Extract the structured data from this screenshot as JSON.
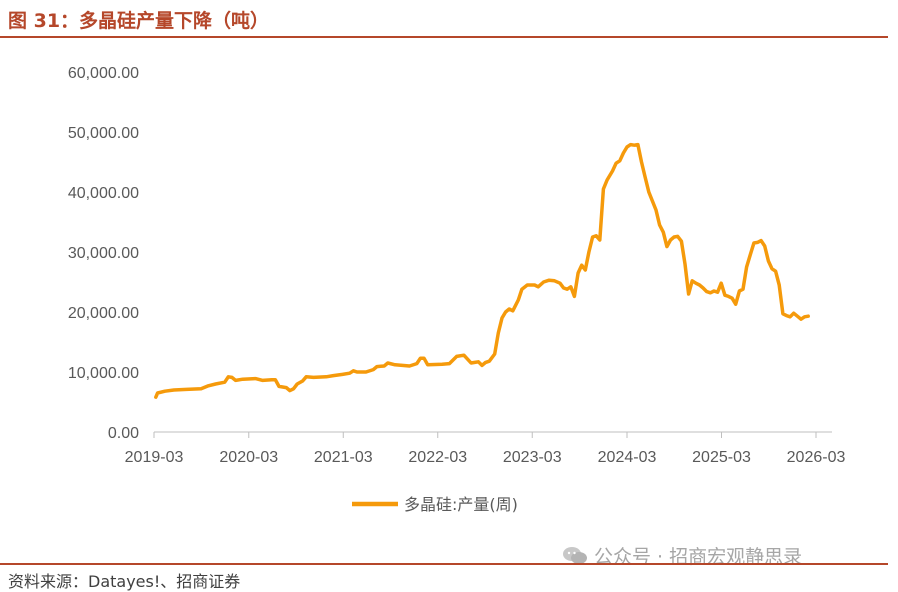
{
  "figure": {
    "title": "图 31：多晶硅产量下降（吨）",
    "source": "资料来源：Datayes!、招商证券",
    "watermark": "公众号 · 招商宏观静思录",
    "watermark_icon": "wechat-icon"
  },
  "colors": {
    "line": "#f59a0b",
    "accent": "#b5472a",
    "axis": "#bfbfbf",
    "text": "#595959"
  },
  "chart_data": {
    "type": "line",
    "title": "",
    "xlabel": "",
    "ylabel": "",
    "ylim": [
      0,
      60000
    ],
    "yticks": [
      "0.00",
      "10,000.00",
      "20,000.00",
      "30,000.00",
      "40,000.00",
      "50,000.00",
      "60,000.00"
    ],
    "xticks": [
      "2019-03",
      "2020-03",
      "2021-03",
      "2022-03",
      "2023-03",
      "2024-03",
      "2025-03",
      "2026-03"
    ],
    "grid": false,
    "legend_position": "bottom",
    "series": [
      {
        "name": "多晶硅:产量(周)",
        "points": [
          [
            "2019-03-08",
            5800
          ],
          [
            "2019-03-15",
            6500
          ],
          [
            "2019-04-12",
            6800
          ],
          [
            "2019-05-17",
            7000
          ],
          [
            "2019-07-05",
            7100
          ],
          [
            "2019-08-30",
            7200
          ],
          [
            "2019-09-27",
            7700
          ],
          [
            "2019-10-25",
            8000
          ],
          [
            "2019-11-29",
            8300
          ],
          [
            "2019-12-13",
            9200
          ],
          [
            "2019-12-27",
            9100
          ],
          [
            "2020-01-10",
            8600
          ],
          [
            "2020-02-07",
            8800
          ],
          [
            "2020-03-27",
            8900
          ],
          [
            "2020-04-24",
            8600
          ],
          [
            "2020-05-29",
            8700
          ],
          [
            "2020-06-12",
            8700
          ],
          [
            "2020-06-26",
            7600
          ],
          [
            "2020-07-24",
            7400
          ],
          [
            "2020-08-07",
            6900
          ],
          [
            "2020-08-21",
            7200
          ],
          [
            "2020-09-04",
            8000
          ],
          [
            "2020-09-25",
            8500
          ],
          [
            "2020-10-09",
            9200
          ],
          [
            "2020-11-06",
            9100
          ],
          [
            "2020-12-25",
            9200
          ],
          [
            "2021-01-22",
            9400
          ],
          [
            "2021-02-26",
            9600
          ],
          [
            "2021-03-26",
            9800
          ],
          [
            "2021-04-09",
            10200
          ],
          [
            "2021-04-23",
            10000
          ],
          [
            "2021-05-28",
            10000
          ],
          [
            "2021-06-25",
            10400
          ],
          [
            "2021-07-09",
            10900
          ],
          [
            "2021-08-06",
            11000
          ],
          [
            "2021-08-20",
            11500
          ],
          [
            "2021-09-17",
            11200
          ],
          [
            "2021-10-15",
            11100
          ],
          [
            "2021-11-12",
            11000
          ],
          [
            "2021-12-10",
            11400
          ],
          [
            "2021-12-24",
            12300
          ],
          [
            "2022-01-07",
            12300
          ],
          [
            "2022-01-21",
            11200
          ],
          [
            "2022-03-18",
            11300
          ],
          [
            "2022-04-15",
            11400
          ],
          [
            "2022-05-13",
            12600
          ],
          [
            "2022-06-10",
            12800
          ],
          [
            "2022-07-08",
            11500
          ],
          [
            "2022-07-22",
            11600
          ],
          [
            "2022-08-05",
            11700
          ],
          [
            "2022-08-19",
            11100
          ],
          [
            "2022-09-02",
            11600
          ],
          [
            "2022-09-16",
            11800
          ],
          [
            "2022-10-07",
            13000
          ],
          [
            "2022-10-21",
            16500
          ],
          [
            "2022-11-04",
            19000
          ],
          [
            "2022-11-18",
            20000
          ],
          [
            "2022-12-02",
            20500
          ],
          [
            "2022-12-16",
            20200
          ],
          [
            "2023-01-06",
            22000
          ],
          [
            "2023-01-20",
            23800
          ],
          [
            "2023-02-10",
            24500
          ],
          [
            "2023-03-10",
            24500
          ],
          [
            "2023-03-24",
            24200
          ],
          [
            "2023-04-14",
            25000
          ],
          [
            "2023-05-05",
            25300
          ],
          [
            "2023-05-26",
            25200
          ],
          [
            "2023-06-16",
            24800
          ],
          [
            "2023-06-30",
            24000
          ],
          [
            "2023-07-14",
            23800
          ],
          [
            "2023-07-28",
            24200
          ],
          [
            "2023-08-11",
            22600
          ],
          [
            "2023-08-25",
            26500
          ],
          [
            "2023-09-08",
            27800
          ],
          [
            "2023-09-22",
            27000
          ],
          [
            "2023-10-06",
            30000
          ],
          [
            "2023-10-20",
            32500
          ],
          [
            "2023-11-03",
            32700
          ],
          [
            "2023-11-17",
            32000
          ],
          [
            "2023-12-01",
            40500
          ],
          [
            "2023-12-15",
            42000
          ],
          [
            "2024-01-05",
            43500
          ],
          [
            "2024-01-19",
            44800
          ],
          [
            "2024-02-02",
            45200
          ],
          [
            "2024-02-16",
            46500
          ],
          [
            "2024-03-01",
            47500
          ],
          [
            "2024-03-15",
            47900
          ],
          [
            "2024-03-29",
            47800
          ],
          [
            "2024-04-12",
            47900
          ],
          [
            "2024-04-26",
            45000
          ],
          [
            "2024-05-10",
            42500
          ],
          [
            "2024-05-24",
            40000
          ],
          [
            "2024-06-07",
            38500
          ],
          [
            "2024-06-21",
            37000
          ],
          [
            "2024-07-05",
            34500
          ],
          [
            "2024-07-19",
            33300
          ],
          [
            "2024-08-02",
            30900
          ],
          [
            "2024-08-16",
            32000
          ],
          [
            "2024-08-30",
            32500
          ],
          [
            "2024-09-13",
            32600
          ],
          [
            "2024-09-27",
            31800
          ],
          [
            "2024-10-11",
            28000
          ],
          [
            "2024-10-25",
            23000
          ],
          [
            "2024-11-08",
            25200
          ],
          [
            "2024-11-22",
            24800
          ],
          [
            "2024-12-06",
            24500
          ],
          [
            "2024-12-20",
            24000
          ],
          [
            "2025-01-03",
            23400
          ],
          [
            "2025-01-17",
            23200
          ],
          [
            "2025-01-31",
            23500
          ],
          [
            "2025-02-14",
            23300
          ],
          [
            "2025-02-28",
            24800
          ],
          [
            "2025-03-14",
            22800
          ],
          [
            "2025-03-28",
            22600
          ],
          [
            "2025-04-11",
            22300
          ],
          [
            "2025-04-25",
            21300
          ],
          [
            "2025-05-09",
            23500
          ],
          [
            "2025-05-23",
            23800
          ],
          [
            "2025-06-06",
            27500
          ],
          [
            "2025-06-20",
            29500
          ],
          [
            "2025-07-04",
            31500
          ],
          [
            "2025-07-18",
            31600
          ],
          [
            "2025-08-01",
            31900
          ],
          [
            "2025-08-15",
            31000
          ],
          [
            "2025-08-29",
            28500
          ],
          [
            "2025-09-12",
            27200
          ],
          [
            "2025-09-26",
            26800
          ],
          [
            "2025-10-10",
            24500
          ],
          [
            "2025-10-24",
            19700
          ],
          [
            "2025-11-07",
            19400
          ],
          [
            "2025-11-21",
            19200
          ],
          [
            "2025-12-05",
            19800
          ],
          [
            "2025-12-19",
            19300
          ],
          [
            "2026-01-02",
            18800
          ],
          [
            "2026-01-16",
            19200
          ],
          [
            "2026-01-30",
            19300
          ]
        ]
      }
    ]
  }
}
